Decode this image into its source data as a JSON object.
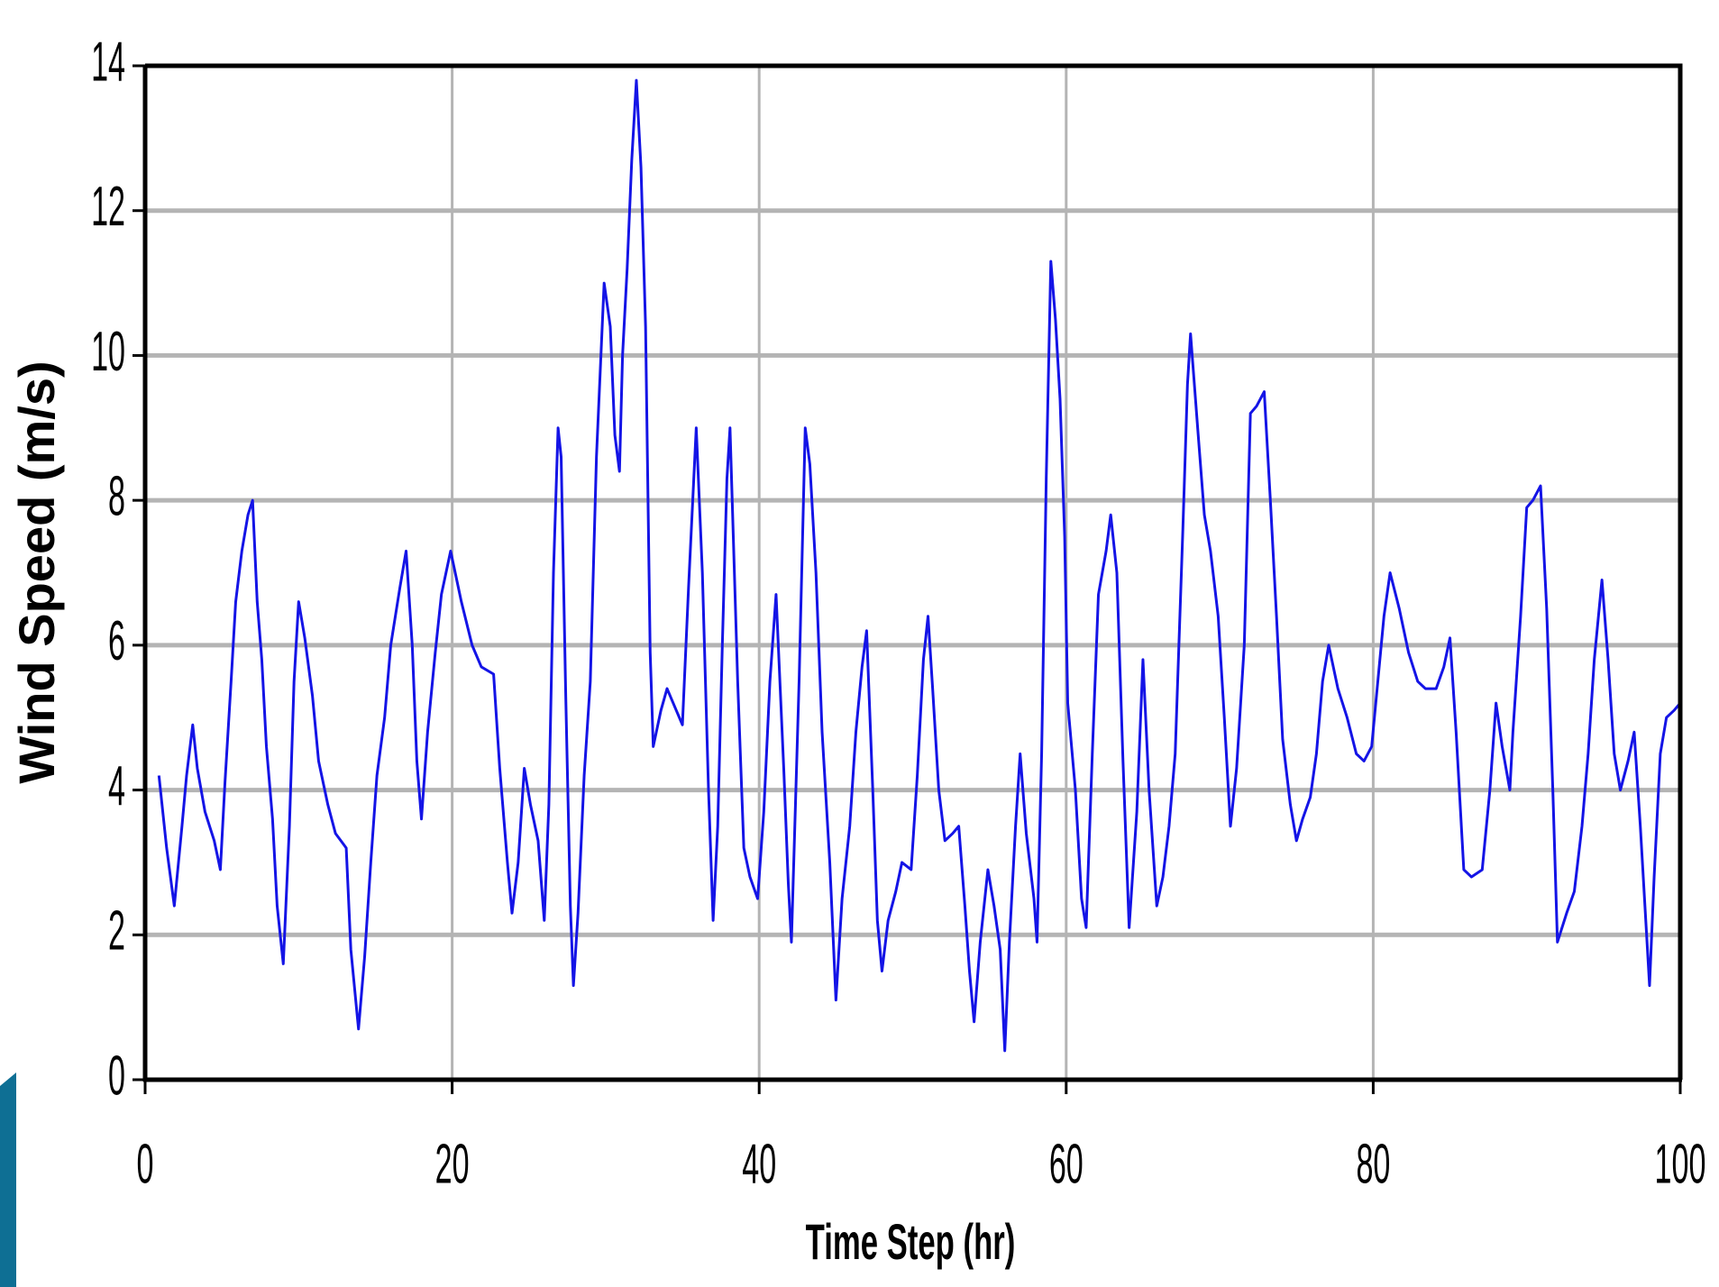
{
  "chart_data": {
    "type": "line",
    "xlabel": "Time Step (hr)",
    "ylabel": "Wind Speed (m/s)",
    "x": [
      0.9,
      1.4,
      1.9,
      2.4,
      2.7,
      3.1,
      3.4,
      3.9,
      4.5,
      4.9,
      5.2,
      5.6,
      5.9,
      6.3,
      6.7,
      7.0,
      7.3,
      7.6,
      7.9,
      8.3,
      8.6,
      9.0,
      9.4,
      9.7,
      10.0,
      10.4,
      10.9,
      11.3,
      11.9,
      12.4,
      13.1,
      13.4,
      13.9,
      14.3,
      14.7,
      15.1,
      15.6,
      16.0,
      16.6,
      17.0,
      17.4,
      17.7,
      18.0,
      18.4,
      18.9,
      19.3,
      19.9,
      20.6,
      21.3,
      21.9,
      22.7,
      23.1,
      23.6,
      23.9,
      24.3,
      24.7,
      25.1,
      25.6,
      26.0,
      26.3,
      26.6,
      26.9,
      27.1,
      27.4,
      27.7,
      27.9,
      28.2,
      28.6,
      29.0,
      29.4,
      29.9,
      30.3,
      30.6,
      30.9,
      31.1,
      31.4,
      31.7,
      32.0,
      32.3,
      32.6,
      32.9,
      33.1,
      33.6,
      34.0,
      34.6,
      35.0,
      35.4,
      35.9,
      36.3,
      36.7,
      37.0,
      37.3,
      37.6,
      37.9,
      38.1,
      38.6,
      39.0,
      39.4,
      39.9,
      40.3,
      40.7,
      41.1,
      41.6,
      41.9,
      42.1,
      42.6,
      43.0,
      43.3,
      43.7,
      44.1,
      44.6,
      45.0,
      45.4,
      45.9,
      46.3,
      46.7,
      47.0,
      47.4,
      47.7,
      48.0,
      48.4,
      48.9,
      49.3,
      49.9,
      50.3,
      50.7,
      51.0,
      51.3,
      51.7,
      52.1,
      52.6,
      53.0,
      53.4,
      53.7,
      54.0,
      54.4,
      54.9,
      55.3,
      55.7,
      56.0,
      56.3,
      56.7,
      57.0,
      57.4,
      57.9,
      58.1,
      58.4,
      58.7,
      59.0,
      59.3,
      59.6,
      59.9,
      60.1,
      60.6,
      61.0,
      61.3,
      61.7,
      62.1,
      62.6,
      62.9,
      63.3,
      63.7,
      64.1,
      64.6,
      65.0,
      65.4,
      65.9,
      66.3,
      66.7,
      67.1,
      67.6,
      67.9,
      68.1,
      68.6,
      69.0,
      69.4,
      69.9,
      70.3,
      70.7,
      71.1,
      71.6,
      72.0,
      72.4,
      72.9,
      73.3,
      73.7,
      74.1,
      74.6,
      75.0,
      75.4,
      75.9,
      76.3,
      76.7,
      77.1,
      77.7,
      78.3,
      78.9,
      79.4,
      79.9,
      80.3,
      80.7,
      81.1,
      81.7,
      82.3,
      82.9,
      83.4,
      84.1,
      84.6,
      85.0,
      85.4,
      85.9,
      86.4,
      87.1,
      87.6,
      88.0,
      88.4,
      88.9,
      89.1,
      89.6,
      90.0,
      90.4,
      90.9,
      91.3,
      91.7,
      92.0,
      92.6,
      93.1,
      93.6,
      94.0,
      94.4,
      94.9,
      95.3,
      95.7,
      96.1,
      96.6,
      97.0,
      97.4,
      97.7,
      98.0,
      98.3,
      98.7,
      99.1,
      99.6,
      100
    ],
    "series": [
      {
        "color": "#1414e6",
        "values": [
          4.2,
          3.2,
          2.4,
          3.5,
          4.2,
          4.9,
          4.3,
          3.7,
          3.3,
          2.9,
          4.1,
          5.5,
          6.6,
          7.3,
          7.8,
          8.0,
          6.6,
          5.8,
          4.6,
          3.6,
          2.4,
          1.6,
          3.5,
          5.5,
          6.6,
          6.1,
          5.3,
          4.4,
          3.8,
          3.4,
          3.2,
          1.8,
          0.7,
          1.7,
          3.0,
          4.2,
          5.0,
          6.0,
          6.8,
          7.3,
          6.0,
          4.4,
          3.6,
          4.8,
          5.9,
          6.7,
          7.3,
          6.6,
          6.0,
          5.7,
          5.6,
          4.3,
          3.0,
          2.3,
          3.0,
          4.3,
          3.8,
          3.3,
          2.2,
          3.8,
          7.0,
          9.0,
          8.6,
          5.3,
          2.4,
          1.3,
          2.3,
          4.2,
          5.5,
          8.6,
          11.0,
          10.4,
          8.9,
          8.4,
          10.0,
          11.2,
          12.7,
          13.8,
          12.6,
          10.4,
          5.9,
          4.6,
          5.1,
          5.4,
          5.1,
          4.9,
          6.8,
          9.0,
          7.0,
          4.0,
          2.2,
          3.5,
          6.0,
          8.3,
          9.0,
          5.5,
          3.2,
          2.8,
          2.5,
          3.7,
          5.5,
          6.7,
          4.3,
          2.7,
          1.9,
          5.5,
          9.0,
          8.5,
          7.0,
          4.8,
          3.0,
          1.1,
          2.5,
          3.5,
          4.8,
          5.7,
          6.2,
          4.0,
          2.2,
          1.5,
          2.2,
          2.6,
          3.0,
          2.9,
          4.2,
          5.8,
          6.4,
          5.4,
          4.0,
          3.3,
          3.4,
          3.5,
          2.4,
          1.5,
          0.8,
          1.9,
          2.9,
          2.4,
          1.8,
          0.4,
          1.9,
          3.5,
          4.5,
          3.4,
          2.5,
          1.9,
          4.5,
          8.3,
          11.3,
          10.5,
          9.4,
          7.5,
          5.2,
          4.0,
          2.5,
          2.1,
          4.5,
          6.7,
          7.3,
          7.8,
          7.0,
          4.4,
          2.1,
          3.7,
          5.8,
          4.0,
          2.4,
          2.8,
          3.5,
          4.5,
          7.6,
          9.6,
          10.3,
          8.9,
          7.8,
          7.3,
          6.4,
          5.0,
          3.5,
          4.3,
          6.0,
          9.2,
          9.3,
          9.5,
          8.0,
          6.4,
          4.7,
          3.8,
          3.3,
          3.6,
          3.9,
          4.5,
          5.5,
          6.0,
          5.4,
          5.0,
          4.5,
          4.4,
          4.6,
          5.5,
          6.4,
          7.0,
          6.5,
          5.9,
          5.5,
          5.4,
          5.4,
          5.7,
          6.1,
          4.8,
          2.9,
          2.8,
          2.9,
          4.0,
          5.2,
          4.6,
          4.0,
          4.8,
          6.4,
          7.9,
          8.0,
          8.2,
          6.5,
          4.0,
          1.9,
          2.3,
          2.6,
          3.5,
          4.5,
          5.8,
          6.9,
          5.8,
          4.5,
          4.0,
          4.4,
          4.8,
          3.5,
          2.4,
          1.3,
          2.8,
          4.5,
          5.0,
          5.1,
          5.2
        ]
      }
    ],
    "xlim": [
      0,
      100
    ],
    "xticks": [
      0,
      20,
      40,
      60,
      80,
      100
    ],
    "ylim": [
      0,
      14
    ],
    "yticks": [
      0,
      2,
      4,
      6,
      8,
      10,
      12,
      14
    ],
    "grid": true
  }
}
